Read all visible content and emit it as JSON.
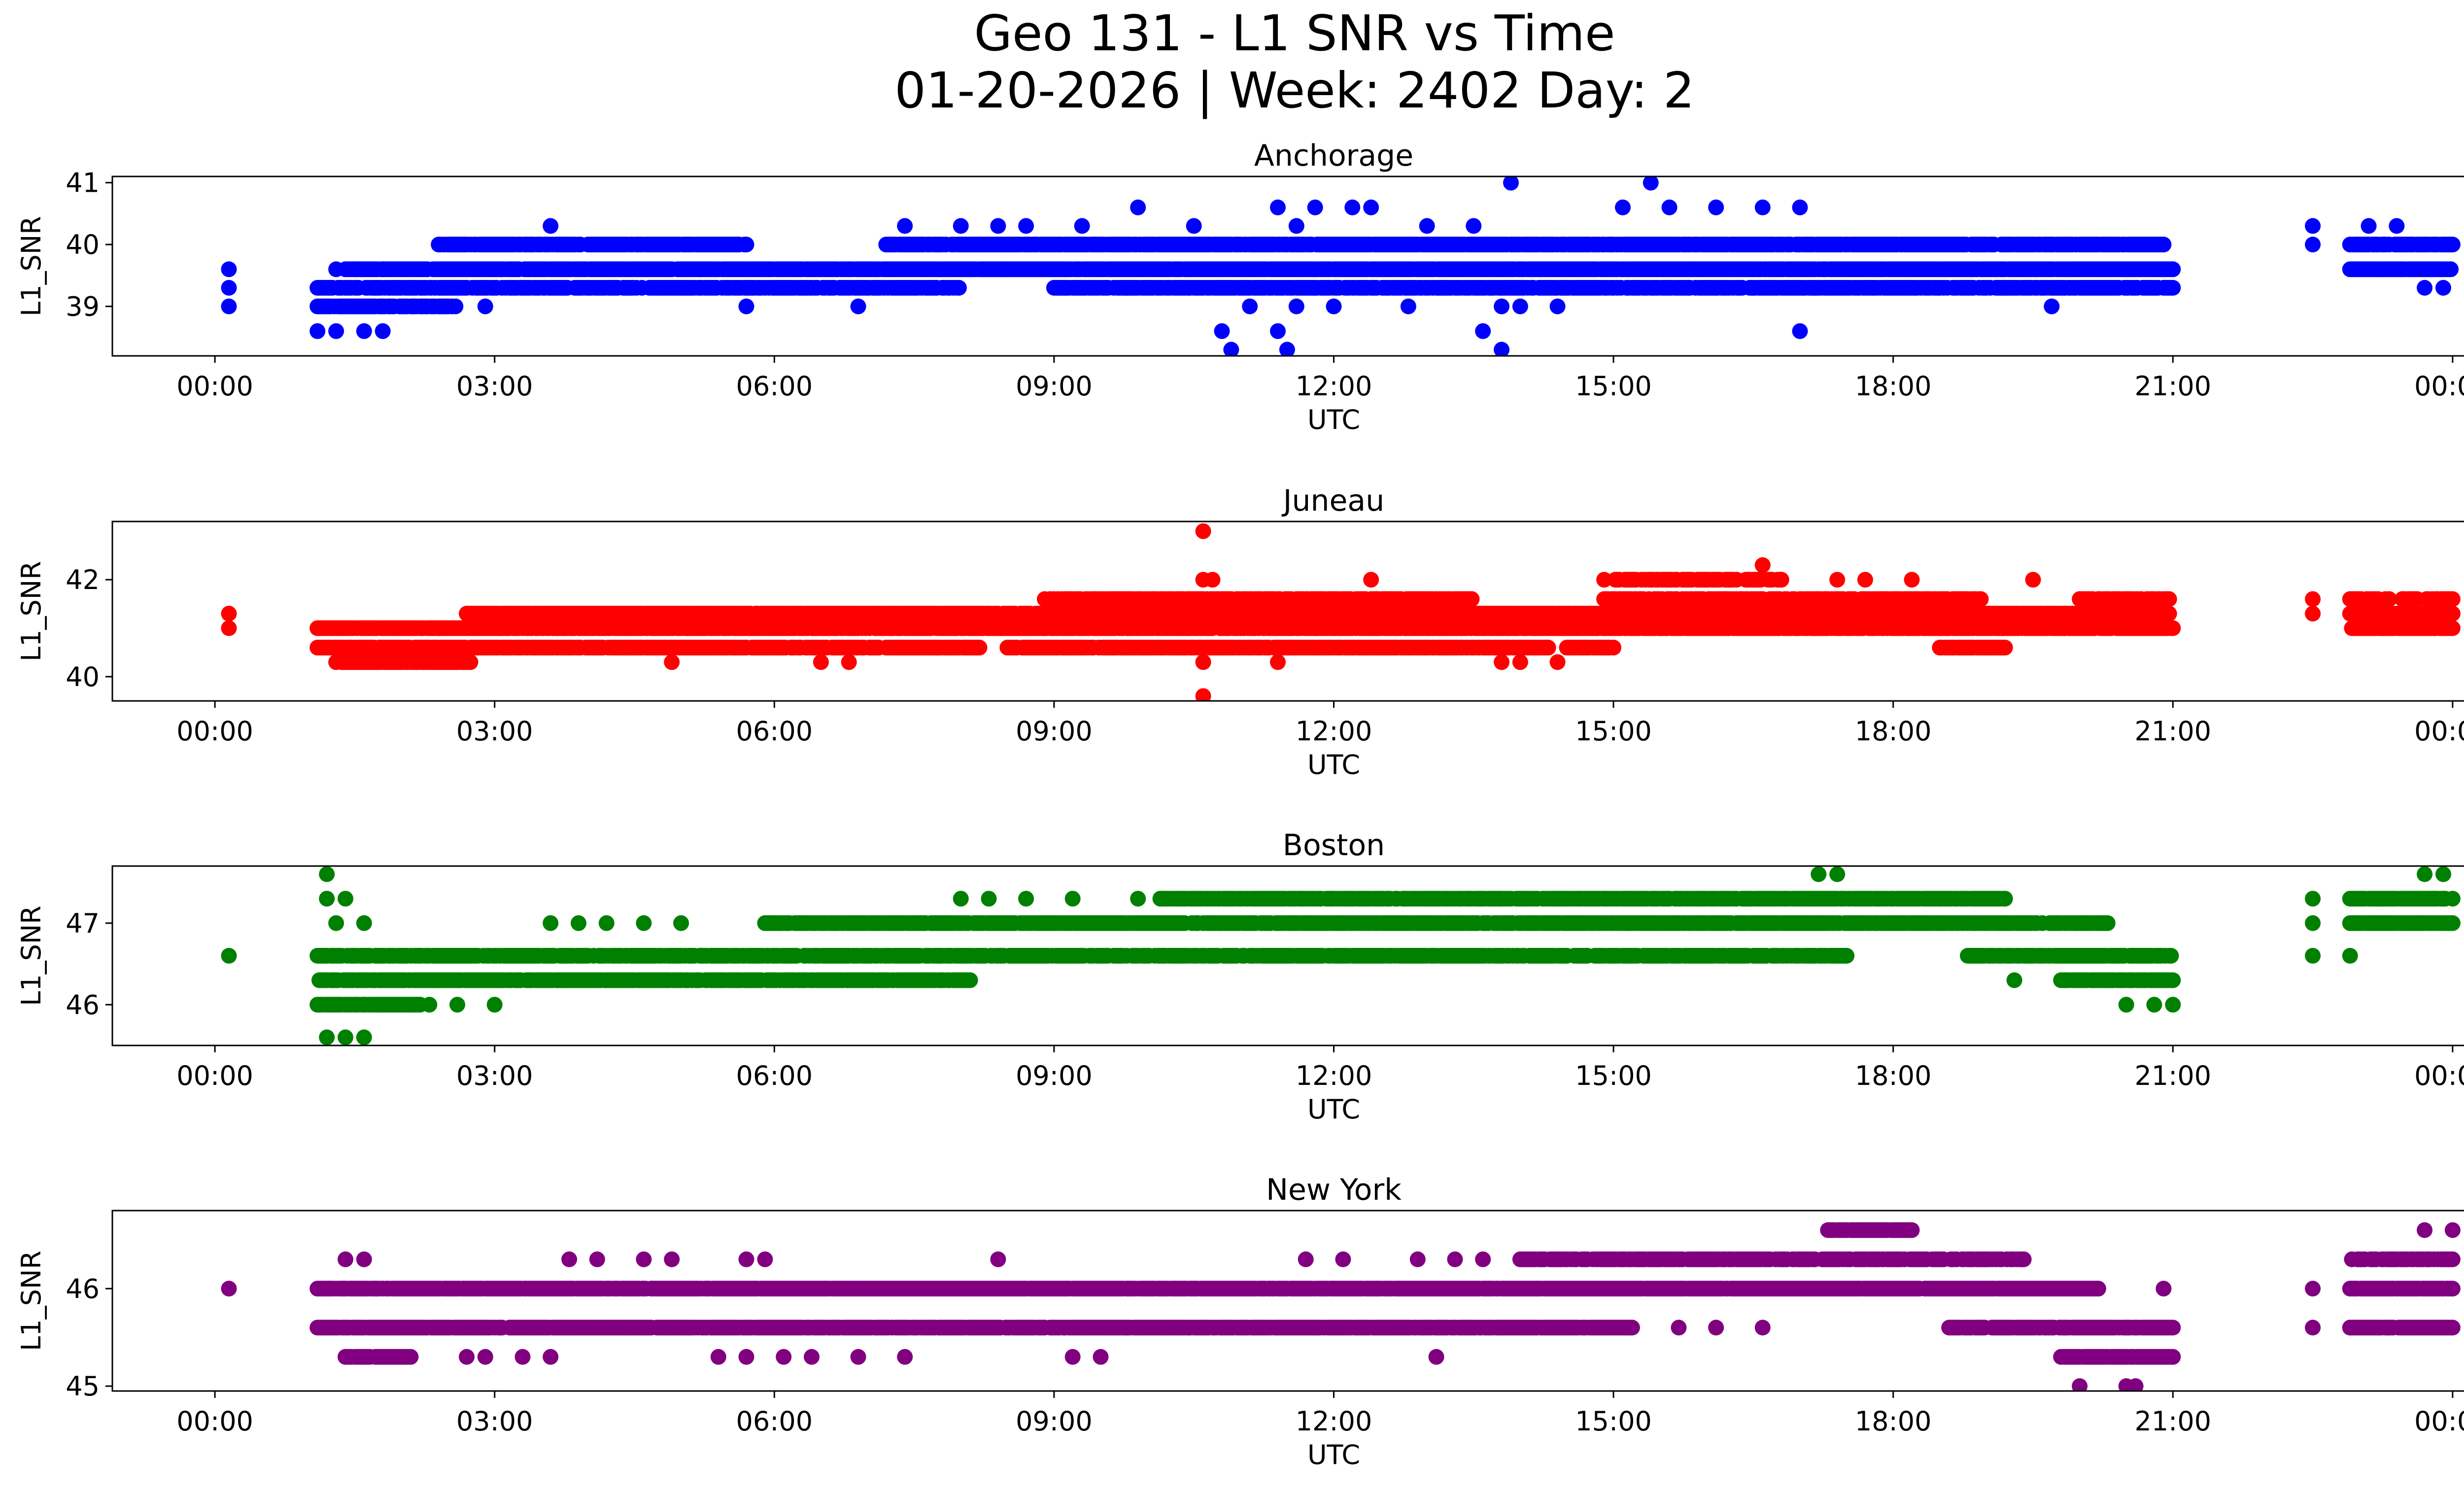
{
  "figure": {
    "title_line1": "Geo 131 - L1 SNR vs Time",
    "title_line2": "01-20-2026 | Week: 2402 Day: 2"
  },
  "chart_data": [
    {
      "type": "scatter",
      "title": "Anchorage",
      "color": "#0000ff",
      "xlabel": "UTC",
      "ylabel": "L1_SNR",
      "xlim": [
        -1.1,
        25.1
      ],
      "ylim": [
        38.2,
        41.1
      ],
      "xticks": [
        0,
        3,
        6,
        9,
        12,
        15,
        18,
        21,
        24
      ],
      "xticklabels": [
        "00:00",
        "03:00",
        "06:00",
        "09:00",
        "12:00",
        "15:00",
        "18:00",
        "21:00",
        "00:00"
      ],
      "yticks": [
        39,
        40,
        41
      ],
      "yticklabels": [
        "39",
        "40",
        "41"
      ],
      "bands": [
        {
          "y": 39.0,
          "ranges": [
            [
              1.1,
              2.6
            ]
          ],
          "density": 0.8
        },
        {
          "y": 39.3,
          "ranges": [
            [
              1.1,
              4.0
            ],
            [
              4.0,
              8.0
            ],
            [
              9.0,
              21.0
            ]
          ],
          "density": 0.85
        },
        {
          "y": 39.6,
          "ranges": [
            [
              1.4,
              21.0
            ],
            [
              22.9,
              24.0
            ]
          ],
          "density": 0.95
        },
        {
          "y": 40.0,
          "ranges": [
            [
              2.4,
              5.7
            ],
            [
              7.2,
              20.9
            ],
            [
              22.9,
              24.0
            ]
          ],
          "density": 0.9
        }
      ],
      "points": [
        [
          0.15,
          39.0
        ],
        [
          0.15,
          39.3
        ],
        [
          0.15,
          39.6
        ],
        [
          1.1,
          38.6
        ],
        [
          1.3,
          38.6
        ],
        [
          1.6,
          38.6
        ],
        [
          1.8,
          38.6
        ],
        [
          1.3,
          39.6
        ],
        [
          1.5,
          39.6
        ],
        [
          1.8,
          39.6
        ],
        [
          3.6,
          40.3
        ],
        [
          2.9,
          39.0
        ],
        [
          5.7,
          39.0
        ],
        [
          6.9,
          39.0
        ],
        [
          7.4,
          40.3
        ],
        [
          8.0,
          40.3
        ],
        [
          8.4,
          40.3
        ],
        [
          8.7,
          40.3
        ],
        [
          9.3,
          40.3
        ],
        [
          9.9,
          40.6
        ],
        [
          10.5,
          40.3
        ],
        [
          10.8,
          38.6
        ],
        [
          10.9,
          38.3
        ],
        [
          11.4,
          38.6
        ],
        [
          11.5,
          38.3
        ],
        [
          11.4,
          40.6
        ],
        [
          11.6,
          40.3
        ],
        [
          11.8,
          40.6
        ],
        [
          12.2,
          40.6
        ],
        [
          12.4,
          40.6
        ],
        [
          11.1,
          39.0
        ],
        [
          11.6,
          39.0
        ],
        [
          12.0,
          39.0
        ],
        [
          12.8,
          39.0
        ],
        [
          13.0,
          40.3
        ],
        [
          13.5,
          40.3
        ],
        [
          13.6,
          38.6
        ],
        [
          13.8,
          38.3
        ],
        [
          13.9,
          41.0
        ],
        [
          13.8,
          39.0
        ],
        [
          14.0,
          39.0
        ],
        [
          14.4,
          39.0
        ],
        [
          15.4,
          41.0
        ],
        [
          15.1,
          40.6
        ],
        [
          15.6,
          40.6
        ],
        [
          16.1,
          40.6
        ],
        [
          16.6,
          40.6
        ],
        [
          17.0,
          40.6
        ],
        [
          17.0,
          38.6
        ],
        [
          16.1,
          39.3
        ],
        [
          17.3,
          39.3
        ],
        [
          19.7,
          39.0
        ],
        [
          22.5,
          40.3
        ],
        [
          22.5,
          40.0
        ],
        [
          23.1,
          40.3
        ],
        [
          23.4,
          40.3
        ],
        [
          23.7,
          39.3
        ],
        [
          23.9,
          39.3
        ]
      ]
    },
    {
      "type": "scatter",
      "title": "Juneau",
      "color": "#ff0000",
      "xlabel": "UTC",
      "ylabel": "L1_SNR",
      "xlim": [
        -1.1,
        25.1
      ],
      "ylim": [
        39.5,
        43.2
      ],
      "xticks": [
        0,
        3,
        6,
        9,
        12,
        15,
        18,
        21,
        24
      ],
      "xticklabels": [
        "00:00",
        "03:00",
        "06:00",
        "09:00",
        "12:00",
        "15:00",
        "18:00",
        "21:00",
        "00:00"
      ],
      "yticks": [
        40,
        42
      ],
      "yticklabels": [
        "40",
        "42"
      ],
      "bands": [
        {
          "y": 40.3,
          "ranges": [
            [
              1.3,
              2.8
            ]
          ],
          "density": 0.9
        },
        {
          "y": 40.6,
          "ranges": [
            [
              1.1,
              8.2
            ],
            [
              8.5,
              14.3
            ],
            [
              14.5,
              15.0
            ],
            [
              18.5,
              19.2
            ]
          ],
          "density": 0.85
        },
        {
          "y": 41.0,
          "ranges": [
            [
              1.1,
              8.9
            ],
            [
              8.9,
              21.0
            ],
            [
              22.9,
              24.0
            ]
          ],
          "density": 0.9
        },
        {
          "y": 41.3,
          "ranges": [
            [
              2.7,
              21.0
            ],
            [
              22.9,
              24.0
            ]
          ],
          "density": 0.9
        },
        {
          "y": 41.6,
          "ranges": [
            [
              8.9,
              13.5
            ],
            [
              14.9,
              19.0
            ],
            [
              20.0,
              21.0
            ],
            [
              22.9,
              24.0
            ]
          ],
          "density": 0.75
        },
        {
          "y": 42.0,
          "ranges": [
            [
              15.0,
              16.8
            ]
          ],
          "density": 0.7
        }
      ],
      "points": [
        [
          0.15,
          41.0
        ],
        [
          0.15,
          41.3
        ],
        [
          10.6,
          43.0
        ],
        [
          10.6,
          42.0
        ],
        [
          10.7,
          42.0
        ],
        [
          10.6,
          40.3
        ],
        [
          10.6,
          39.6
        ],
        [
          11.4,
          40.3
        ],
        [
          11.4,
          40.6
        ],
        [
          12.4,
          42.0
        ],
        [
          14.0,
          40.3
        ],
        [
          14.4,
          40.3
        ],
        [
          14.9,
          42.0
        ],
        [
          16.6,
          42.3
        ],
        [
          16.8,
          42.0
        ],
        [
          17.4,
          42.0
        ],
        [
          17.7,
          42.0
        ],
        [
          18.2,
          42.0
        ],
        [
          19.5,
          42.0
        ],
        [
          22.5,
          41.6
        ],
        [
          22.5,
          41.3
        ],
        [
          23.0,
          41.0
        ],
        [
          23.3,
          41.0
        ],
        [
          4.9,
          40.3
        ],
        [
          6.5,
          40.3
        ],
        [
          6.8,
          40.3
        ],
        [
          13.8,
          40.3
        ]
      ]
    },
    {
      "type": "scatter",
      "title": "Boston",
      "color": "#008000",
      "xlabel": "UTC",
      "ylabel": "L1_SNR",
      "xlim": [
        -1.1,
        25.1
      ],
      "ylim": [
        45.5,
        47.7
      ],
      "xticks": [
        0,
        3,
        6,
        9,
        12,
        15,
        18,
        21,
        24
      ],
      "xticklabels": [
        "00:00",
        "03:00",
        "06:00",
        "09:00",
        "12:00",
        "15:00",
        "18:00",
        "21:00",
        "00:00"
      ],
      "yticks": [
        46,
        47
      ],
      "yticklabels": [
        "46",
        "47"
      ],
      "bands": [
        {
          "y": 46.0,
          "ranges": [
            [
              1.1,
              2.2
            ]
          ],
          "density": 0.95
        },
        {
          "y": 46.3,
          "ranges": [
            [
              1.1,
              8.1
            ],
            [
              19.8,
              21.0
            ]
          ],
          "density": 0.9
        },
        {
          "y": 46.6,
          "ranges": [
            [
              1.1,
              10.5
            ],
            [
              10.5,
              17.5
            ],
            [
              18.8,
              21.0
            ]
          ],
          "density": 0.85
        },
        {
          "y": 47.0,
          "ranges": [
            [
              5.9,
              20.3
            ],
            [
              22.9,
              24.0
            ]
          ],
          "density": 0.85
        },
        {
          "y": 47.3,
          "ranges": [
            [
              10.1,
              19.2
            ],
            [
              22.9,
              24.0
            ]
          ],
          "density": 0.8
        }
      ],
      "points": [
        [
          0.15,
          46.6
        ],
        [
          1.2,
          47.6
        ],
        [
          1.2,
          47.3
        ],
        [
          1.4,
          47.3
        ],
        [
          1.3,
          47.0
        ],
        [
          1.6,
          47.0
        ],
        [
          1.2,
          45.6
        ],
        [
          1.4,
          45.6
        ],
        [
          1.6,
          45.6
        ],
        [
          2.3,
          46.0
        ],
        [
          2.6,
          46.0
        ],
        [
          3.0,
          46.0
        ],
        [
          3.6,
          47.0
        ],
        [
          3.9,
          47.0
        ],
        [
          4.2,
          47.0
        ],
        [
          4.6,
          47.0
        ],
        [
          5.0,
          47.0
        ],
        [
          8.0,
          47.3
        ],
        [
          8.3,
          47.3
        ],
        [
          8.7,
          47.3
        ],
        [
          9.2,
          47.3
        ],
        [
          9.9,
          47.3
        ],
        [
          17.2,
          47.6
        ],
        [
          17.4,
          47.6
        ],
        [
          19.3,
          46.3
        ],
        [
          20.3,
          46.3
        ],
        [
          20.5,
          46.0
        ],
        [
          20.8,
          46.0
        ],
        [
          21.0,
          46.0
        ],
        [
          22.5,
          47.3
        ],
        [
          22.5,
          47.0
        ],
        [
          22.5,
          46.6
        ],
        [
          22.9,
          46.6
        ],
        [
          23.7,
          47.6
        ],
        [
          23.9,
          47.6
        ]
      ]
    },
    {
      "type": "scatter",
      "title": "New York",
      "color": "#800080",
      "xlabel": "UTC",
      "ylabel": "L1_SNR",
      "xlim": [
        -1.1,
        25.1
      ],
      "ylim": [
        44.95,
        46.8
      ],
      "xticks": [
        0,
        3,
        6,
        9,
        12,
        15,
        18,
        21,
        24
      ],
      "xticklabels": [
        "00:00",
        "03:00",
        "06:00",
        "09:00",
        "12:00",
        "15:00",
        "18:00",
        "21:00",
        "00:00"
      ],
      "yticks": [
        45,
        46
      ],
      "yticklabels": [
        "45",
        "46"
      ],
      "bands": [
        {
          "y": 45.3,
          "ranges": [
            [
              1.4,
              2.1
            ],
            [
              19.8,
              21.0
            ]
          ],
          "density": 0.85
        },
        {
          "y": 45.6,
          "ranges": [
            [
              1.1,
              15.2
            ],
            [
              18.6,
              21.0
            ],
            [
              22.9,
              24.0
            ]
          ],
          "density": 0.9
        },
        {
          "y": 46.0,
          "ranges": [
            [
              1.1,
              20.2
            ],
            [
              22.9,
              24.0
            ]
          ],
          "density": 0.95
        },
        {
          "y": 46.3,
          "ranges": [
            [
              14.0,
              19.4
            ],
            [
              22.9,
              24.0
            ]
          ],
          "density": 0.8
        },
        {
          "y": 46.6,
          "ranges": [
            [
              17.3,
              18.2
            ]
          ],
          "density": 0.9
        }
      ],
      "points": [
        [
          0.15,
          46.0
        ],
        [
          1.4,
          46.3
        ],
        [
          1.6,
          46.3
        ],
        [
          2.7,
          45.3
        ],
        [
          2.9,
          45.3
        ],
        [
          3.3,
          45.3
        ],
        [
          3.6,
          45.3
        ],
        [
          3.8,
          46.3
        ],
        [
          4.1,
          46.3
        ],
        [
          4.6,
          46.3
        ],
        [
          4.9,
          46.3
        ],
        [
          5.4,
          45.3
        ],
        [
          5.7,
          46.3
        ],
        [
          5.9,
          46.3
        ],
        [
          5.7,
          45.3
        ],
        [
          6.1,
          45.3
        ],
        [
          6.4,
          45.3
        ],
        [
          6.9,
          45.3
        ],
        [
          7.4,
          45.3
        ],
        [
          8.4,
          46.3
        ],
        [
          9.2,
          45.3
        ],
        [
          9.5,
          45.3
        ],
        [
          11.7,
          46.3
        ],
        [
          12.1,
          46.3
        ],
        [
          12.9,
          46.3
        ],
        [
          13.1,
          45.3
        ],
        [
          13.3,
          46.3
        ],
        [
          13.6,
          46.3
        ],
        [
          15.7,
          45.6
        ],
        [
          16.1,
          45.6
        ],
        [
          16.6,
          45.6
        ],
        [
          20.0,
          45.0
        ],
        [
          20.5,
          45.0
        ],
        [
          20.6,
          45.0
        ],
        [
          20.9,
          46.0
        ],
        [
          22.5,
          46.0
        ],
        [
          22.5,
          45.6
        ],
        [
          22.9,
          45.6
        ],
        [
          23.3,
          45.6
        ],
        [
          23.7,
          46.6
        ],
        [
          24.0,
          46.6
        ]
      ]
    }
  ]
}
